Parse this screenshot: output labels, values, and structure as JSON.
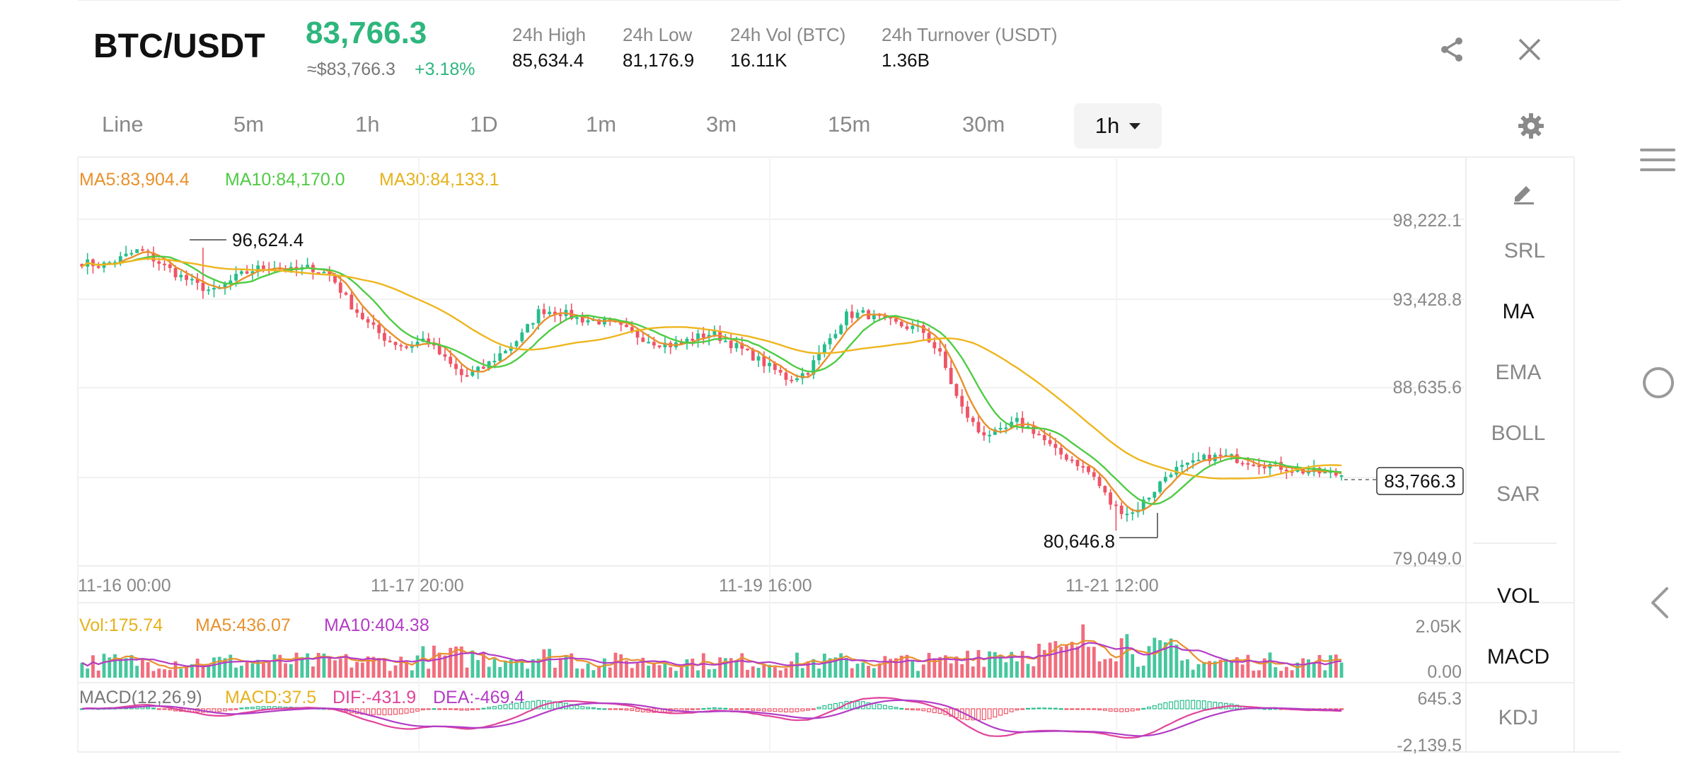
{
  "header": {
    "pair": "BTC/USDT",
    "last_price": "83,766.3",
    "usd_approx": "≈$83,766.3",
    "change": "+3.18%",
    "stats": [
      {
        "label": "24h High",
        "value": "85,634.4"
      },
      {
        "label": "24h Low",
        "value": "81,176.9"
      },
      {
        "label": "24h Vol (BTC)",
        "value": "16.11K"
      },
      {
        "label": "24h Turnover (USDT)",
        "value": "1.36B"
      }
    ]
  },
  "timeframes": [
    "Line",
    "5m",
    "1h",
    "1D",
    "1m",
    "3m",
    "15m",
    "30m"
  ],
  "active_timeframe": "1h",
  "legend": {
    "ma5": "MA5:83,904.4",
    "ma10": "MA10:84,170.0",
    "ma30": "MA30:84,133.1",
    "vol": "Vol:175.74",
    "vol_ma5": "MA5:436.07",
    "vol_ma10": "MA10:404.38",
    "macd_params": "MACD(12,26,9)",
    "macd": "MACD:37.5",
    "dif": "DIF:-431.9",
    "dea": "DEA:-469.4"
  },
  "indicators": {
    "main": [
      "SRL",
      "MA",
      "EMA",
      "BOLL",
      "SAR"
    ],
    "sub": [
      "VOL",
      "MACD",
      "KDJ"
    ],
    "active": [
      "MA",
      "VOL",
      "MACD"
    ]
  },
  "colors": {
    "up": "#26bd8c",
    "down": "#ef5466",
    "ma5": "#e8912d",
    "ma10": "#4fcc45",
    "ma30": "#eeb51e",
    "accent": "#2eb67d"
  },
  "icons": {
    "share": "share-icon",
    "close": "close-icon",
    "settings": "gear-icon",
    "draw": "pencil-icon"
  },
  "chart_data": [
    {
      "type": "candlestick",
      "y_ticks": [
        "98,222.1",
        "93,428.8",
        "88,635.6",
        "79,049.0"
      ],
      "x_ticks": [
        "11-16 00:00",
        "11-17 20:00",
        "11-19 16:00",
        "11-21 12:00"
      ],
      "ylim": [
        79049.0,
        98222.1
      ],
      "last_price_label": "83,766.3",
      "high_label": "96,624.4",
      "low_label": "80,646.8",
      "high_value": 96624.4,
      "low_value": 80646.8,
      "close_path": [
        95800,
        95600,
        96000,
        96500,
        95800,
        95100,
        94500,
        94100,
        94900,
        95400,
        95600,
        95300,
        95500,
        95100,
        93500,
        92300,
        91400,
        91000,
        91500,
        90300,
        89300,
        89800,
        90700,
        91600,
        93100,
        93000,
        92600,
        92500,
        92200,
        91700,
        91300,
        91100,
        91500,
        91800,
        91200,
        90600,
        89900,
        89200,
        89600,
        91200,
        92800,
        92900,
        92500,
        92200,
        92000,
        90500,
        87700,
        86200,
        86100,
        86800,
        86200,
        85100,
        84600,
        83700,
        82000,
        81600,
        82700,
        84000,
        84300,
        84800,
        84800,
        84600,
        84400,
        84200,
        84000,
        83900,
        83766.3
      ]
    },
    {
      "type": "bar",
      "name": "volume",
      "y_ticks": [
        "2.05K",
        "0.00"
      ],
      "ylim": [
        0,
        2050
      ]
    },
    {
      "type": "bar",
      "name": "macd",
      "y_ticks": [
        "645.3",
        "-2,139.5"
      ],
      "ylim": [
        -2139.5,
        645.3
      ]
    }
  ]
}
